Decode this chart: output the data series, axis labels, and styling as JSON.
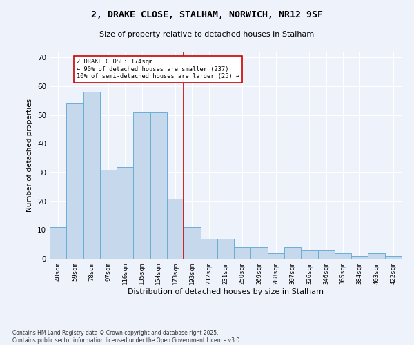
{
  "title": "2, DRAKE CLOSE, STALHAM, NORWICH, NR12 9SF",
  "subtitle": "Size of property relative to detached houses in Stalham",
  "xlabel": "Distribution of detached houses by size in Stalham",
  "ylabel": "Number of detached properties",
  "categories": [
    "40sqm",
    "59sqm",
    "78sqm",
    "97sqm",
    "116sqm",
    "135sqm",
    "154sqm",
    "173sqm",
    "193sqm",
    "212sqm",
    "231sqm",
    "250sqm",
    "269sqm",
    "288sqm",
    "307sqm",
    "326sqm",
    "346sqm",
    "365sqm",
    "384sqm",
    "403sqm",
    "422sqm"
  ],
  "values": [
    11,
    54,
    58,
    31,
    32,
    51,
    51,
    21,
    11,
    7,
    7,
    4,
    4,
    2,
    4,
    3,
    3,
    2,
    1,
    2,
    1
  ],
  "bar_color": "#c5d8ec",
  "bar_edge_color": "#6aaed6",
  "vline_x_index": 7,
  "vline_color": "#cc0000",
  "annotation_text": "2 DRAKE CLOSE: 174sqm\n← 90% of detached houses are smaller (237)\n10% of semi-detached houses are larger (25) →",
  "annotation_box_color": "#ffffff",
  "annotation_box_edge": "#cc0000",
  "ylim": [
    0,
    72
  ],
  "yticks": [
    0,
    10,
    20,
    30,
    40,
    50,
    60,
    70
  ],
  "footer": "Contains HM Land Registry data © Crown copyright and database right 2025.\nContains public sector information licensed under the Open Government Licence v3.0.",
  "bg_color": "#eef2fa",
  "grid_color": "#ffffff"
}
